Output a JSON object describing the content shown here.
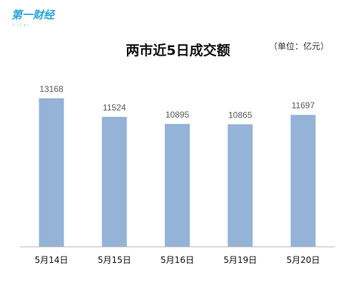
{
  "brand": {
    "logo_text": "第一财经",
    "logo_sub": "YICAI"
  },
  "colors": {
    "bar": "#95b3d7",
    "axis": "#bfbfbf",
    "brand": "#2aa4d8"
  },
  "chart_data": {
    "type": "bar",
    "title": "两市近5日成交额",
    "unit": "（单位：亿元）",
    "categories": [
      "5月14日",
      "5月15日",
      "5月16日",
      "5月19日",
      "5月20日"
    ],
    "values": [
      13168,
      11524,
      10895,
      10865,
      11697
    ],
    "ylim": [
      0,
      13168
    ],
    "grid": false,
    "legend": "none",
    "xlabel": "",
    "ylabel": ""
  }
}
